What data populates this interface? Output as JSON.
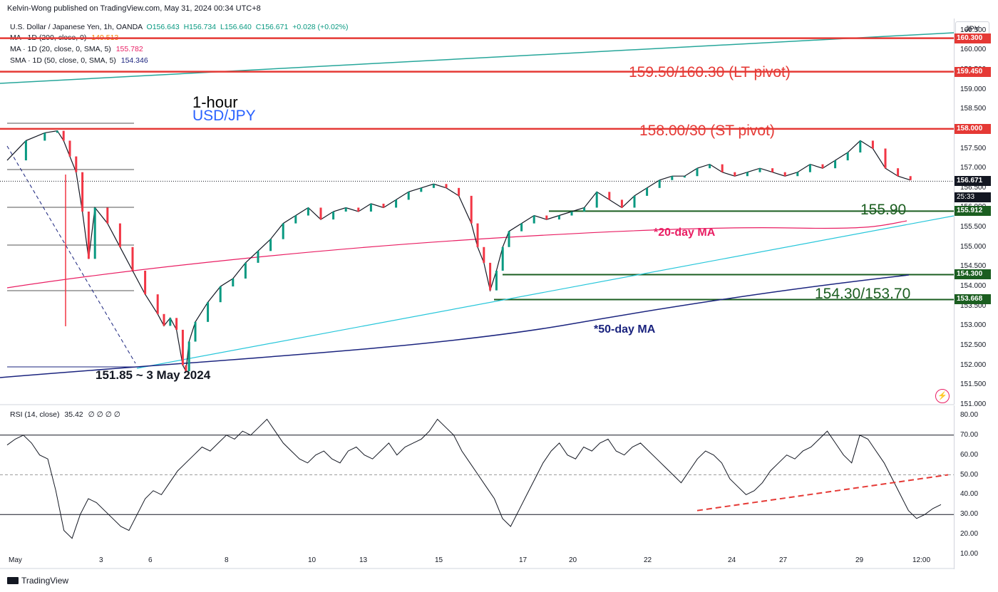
{
  "publisher": "Kelvin-Wong published on TradingView.com, May 31, 2024 00:34 UTC+8",
  "legend": {
    "symbol": "U.S. Dollar / Japanese Yen, 1h, OANDA",
    "ohlc": {
      "o": "O156.643",
      "h": "H156.734",
      "l": "L156.640",
      "c": "C156.671",
      "chg": "+0.028 (+0.02%)"
    },
    "ma200": {
      "label": "MA · 1D (200, close, 0)",
      "value": "149.513",
      "color": "#f57c00"
    },
    "ma20": {
      "label": "MA · 1D (20, close, 0, SMA, 5)",
      "value": "155.782"
    },
    "sma50": {
      "label": "SMA · 1D (50, close, 0, SMA, 5)",
      "value": "154.346"
    },
    "rsi": {
      "label": "RSI (14, close)",
      "value": "35.42",
      "extras": "∅ ∅ ∅ ∅"
    }
  },
  "currency_button": "JPY",
  "time_left": "25:33",
  "annotations": {
    "timeframe": "1-hour",
    "pair": "USD/JPY",
    "lt_pivot": "159.50/160.30 (LT pivot)",
    "st_pivot": "158.00/30 (ST pivot)",
    "support1": "155.90",
    "support2": "154.30/153.70",
    "ma20_label": "*20-day MA",
    "ma50_label": "*50-day MA",
    "low_label": "151.85 ~ 3 May 2024"
  },
  "price_badges": [
    {
      "value": "160.300",
      "price": 160.3,
      "color": "#e53935"
    },
    {
      "value": "159.450",
      "price": 159.45,
      "color": "#e53935"
    },
    {
      "value": "158.000",
      "price": 158.0,
      "color": "#e53935"
    },
    {
      "value": "156.671",
      "price": 156.671,
      "color": "#131722"
    },
    {
      "value": "155.912",
      "price": 155.912,
      "color": "#1b5e20"
    },
    {
      "value": "154.300",
      "price": 154.3,
      "color": "#1b5e20"
    },
    {
      "value": "153.668",
      "price": 153.668,
      "color": "#1b5e20"
    }
  ],
  "footer": "TradingView",
  "chart_data": [
    {
      "type": "line",
      "name": "USD/JPY 1h",
      "x_labels": [
        "May",
        "3",
        "6",
        "8",
        "10",
        "13",
        "15",
        "17",
        "20",
        "22",
        "24",
        "27",
        "29",
        "12:00"
      ],
      "y_ticks": [
        "151.000",
        "151.500",
        "152.000",
        "152.500",
        "153.000",
        "153.500",
        "154.000",
        "154.500",
        "155.000",
        "155.500",
        "156.000",
        "156.500",
        "157.000",
        "157.500",
        "158.000",
        "158.500",
        "159.000",
        "159.500",
        "160.000",
        "160.500"
      ],
      "ylim": [
        151.0,
        160.8
      ],
      "close_path": [
        [
          0,
          157.2
        ],
        [
          3,
          157.7
        ],
        [
          6,
          157.9
        ],
        [
          8,
          157.95
        ],
        [
          9,
          157.7
        ],
        [
          10,
          157.3
        ],
        [
          11,
          156.9
        ],
        [
          12,
          155.9
        ],
        [
          13,
          154.7
        ],
        [
          14,
          156.0
        ],
        [
          16,
          155.6
        ],
        [
          18,
          155.0
        ],
        [
          20,
          154.4
        ],
        [
          22,
          153.8
        ],
        [
          24,
          153.3
        ],
        [
          25,
          153.0
        ],
        [
          26,
          153.2
        ],
        [
          27,
          152.9
        ],
        [
          28,
          152.0
        ],
        [
          28.5,
          151.85
        ],
        [
          29,
          152.6
        ],
        [
          30,
          153.1
        ],
        [
          32,
          153.6
        ],
        [
          34,
          154.0
        ],
        [
          36,
          154.2
        ],
        [
          38,
          154.6
        ],
        [
          40,
          154.9
        ],
        [
          42,
          155.2
        ],
        [
          44,
          155.6
        ],
        [
          46,
          155.8
        ],
        [
          48,
          156.0
        ],
        [
          50,
          155.7
        ],
        [
          52,
          155.9
        ],
        [
          54,
          156.0
        ],
        [
          56,
          155.9
        ],
        [
          58,
          156.1
        ],
        [
          60,
          156.0
        ],
        [
          62,
          156.2
        ],
        [
          64,
          156.4
        ],
        [
          66,
          156.5
        ],
        [
          68,
          156.6
        ],
        [
          70,
          156.5
        ],
        [
          72,
          156.3
        ],
        [
          74,
          155.6
        ],
        [
          75,
          155.0
        ],
        [
          76,
          154.6
        ],
        [
          77,
          153.9
        ],
        [
          78,
          154.4
        ],
        [
          79,
          155.0
        ],
        [
          80,
          155.4
        ],
        [
          82,
          155.6
        ],
        [
          84,
          155.8
        ],
        [
          86,
          155.7
        ],
        [
          88,
          155.8
        ],
        [
          90,
          155.9
        ],
        [
          92,
          156.0
        ],
        [
          94,
          156.4
        ],
        [
          96,
          156.2
        ],
        [
          98,
          156.0
        ],
        [
          100,
          156.3
        ],
        [
          102,
          156.5
        ],
        [
          104,
          156.7
        ],
        [
          106,
          156.8
        ],
        [
          108,
          156.8
        ],
        [
          110,
          157.0
        ],
        [
          112,
          157.1
        ],
        [
          114,
          156.9
        ],
        [
          116,
          156.8
        ],
        [
          118,
          156.9
        ],
        [
          120,
          157.0
        ],
        [
          122,
          156.9
        ],
        [
          124,
          156.8
        ],
        [
          126,
          156.9
        ],
        [
          128,
          157.1
        ],
        [
          130,
          157.0
        ],
        [
          132,
          157.2
        ],
        [
          134,
          157.4
        ],
        [
          136,
          157.7
        ],
        [
          138,
          157.5
        ],
        [
          140,
          157.0
        ],
        [
          142,
          156.8
        ],
        [
          144,
          156.7
        ]
      ],
      "x_range": [
        0,
        150
      ],
      "pivot_levels": [
        160.3,
        159.45,
        158.0
      ],
      "support_levels": [
        155.912,
        154.3,
        153.668
      ],
      "current_price": 156.671
    },
    {
      "type": "line",
      "name": "RSI (14, close)",
      "ylim": [
        10,
        85
      ],
      "y_ticks": [
        "10.00",
        "20.00",
        "30.00",
        "40.00",
        "50.00",
        "60.00",
        "70.00",
        "80.00"
      ],
      "bands": [
        30,
        50,
        70
      ],
      "values": [
        65,
        68,
        70,
        66,
        60,
        58,
        42,
        22,
        18,
        30,
        38,
        36,
        32,
        28,
        24,
        22,
        30,
        38,
        42,
        40,
        46,
        52,
        56,
        60,
        64,
        62,
        66,
        70,
        68,
        72,
        70,
        74,
        78,
        72,
        66,
        62,
        58,
        56,
        60,
        62,
        58,
        56,
        62,
        64,
        60,
        58,
        62,
        66,
        60,
        64,
        66,
        68,
        72,
        78,
        74,
        70,
        62,
        56,
        50,
        44,
        38,
        28,
        24,
        32,
        40,
        48,
        56,
        62,
        66,
        60,
        58,
        64,
        62,
        66,
        68,
        62,
        60,
        64,
        66,
        62,
        58,
        54,
        50,
        46,
        52,
        58,
        62,
        60,
        56,
        48,
        44,
        40,
        42,
        46,
        52,
        56,
        60,
        58,
        62,
        64,
        68,
        72,
        66,
        60,
        56,
        70,
        68,
        62,
        56,
        48,
        40,
        32,
        28,
        30,
        33,
        35
      ],
      "trendline": [
        [
          110,
          32
        ],
        [
          150,
          50
        ]
      ]
    }
  ]
}
